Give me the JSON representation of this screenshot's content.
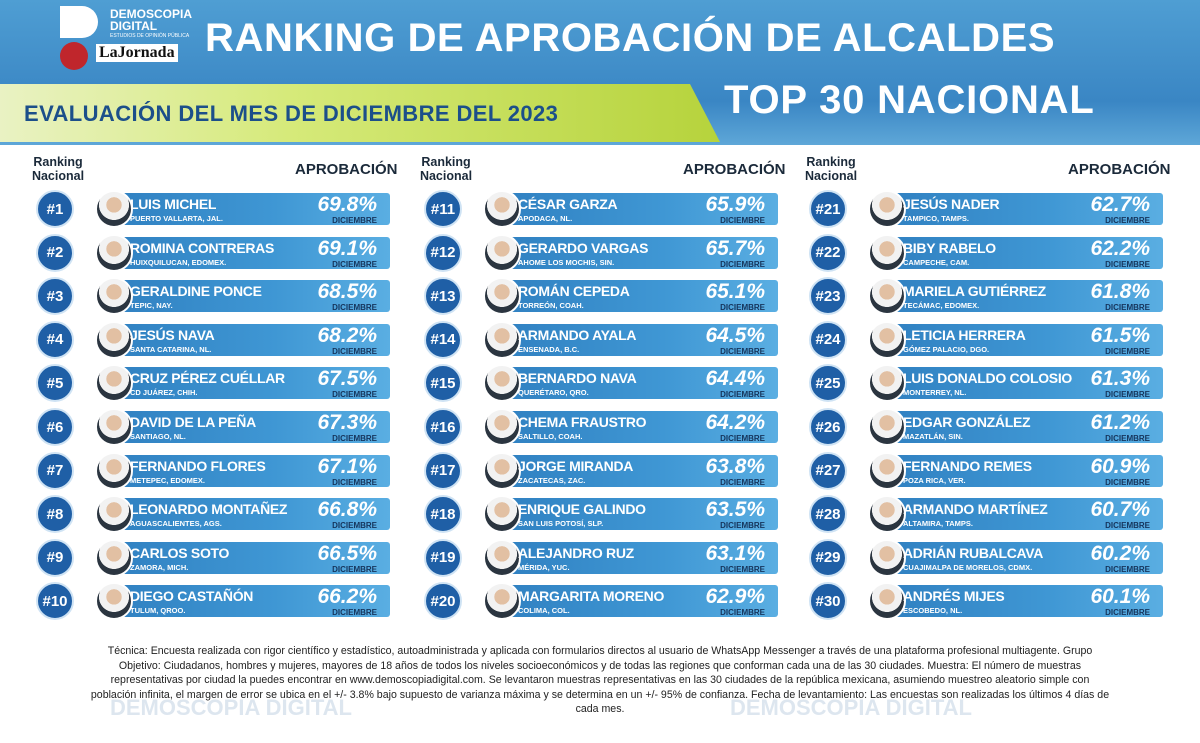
{
  "header": {
    "logo_name": "DEMOSCOPIA DIGITAL",
    "logo_tagline": "ESTUDIOS DE OPINIÓN PÚBLICA",
    "partner": "LaJornada",
    "title": "RANKING DE APROBACIÓN DE ALCALDES",
    "subtitle": "EVALUACIÓN DEL MES DE DICIEMBRE DEL 2023",
    "top": "TOP 30 NACIONAL"
  },
  "columns": {
    "rank_header": "Ranking Nacional",
    "approval_header": "APROBACIÓN",
    "month": "DICIEMBRE"
  },
  "rows": [
    [
      "#1",
      "LUIS MICHEL",
      "PUERTO VALLARTA, JAL.",
      "69.8%"
    ],
    [
      "#2",
      "ROMINA CONTRERAS",
      "HUIXQUILUCAN, EDOMEX.",
      "69.1%"
    ],
    [
      "#3",
      "GERALDINE PONCE",
      "TEPIC, NAY.",
      "68.5%"
    ],
    [
      "#4",
      "JESÚS NAVA",
      "SANTA CATARINA, NL.",
      "68.2%"
    ],
    [
      "#5",
      "CRUZ PÉREZ CUÉLLAR",
      "CD JUÁREZ, CHIH.",
      "67.5%"
    ],
    [
      "#6",
      "DAVID DE LA PEÑA",
      "SANTIAGO, NL.",
      "67.3%"
    ],
    [
      "#7",
      "FERNANDO FLORES",
      "METEPEC, EDOMEX.",
      "67.1%"
    ],
    [
      "#8",
      "LEONARDO MONTAÑEZ",
      "AGUASCALIENTES, AGS.",
      "66.8%"
    ],
    [
      "#9",
      "CARLOS SOTO",
      "ZAMORA, MICH.",
      "66.5%"
    ],
    [
      "#10",
      "DIEGO CASTAÑÓN",
      "TULUM, QROO.",
      "66.2%"
    ],
    [
      "#11",
      "CÉSAR GARZA",
      "APODACA, NL.",
      "65.9%"
    ],
    [
      "#12",
      "GERARDO VARGAS",
      "AHOME LOS MOCHIS, SIN.",
      "65.7%"
    ],
    [
      "#13",
      "ROMÁN CEPEDA",
      "TORREÓN, COAH.",
      "65.1%"
    ],
    [
      "#14",
      "ARMANDO AYALA",
      "ENSENADA, B.C.",
      "64.5%"
    ],
    [
      "#15",
      "BERNARDO NAVA",
      "QUERÉTARO, QRO.",
      "64.4%"
    ],
    [
      "#16",
      "CHEMA FRAUSTRO",
      "SALTILLO, COAH.",
      "64.2%"
    ],
    [
      "#17",
      "JORGE MIRANDA",
      "ZACATECAS, ZAC.",
      "63.8%"
    ],
    [
      "#18",
      "ENRIQUE GALINDO",
      "SAN LUIS POTOSÍ, SLP.",
      "63.5%"
    ],
    [
      "#19",
      "ALEJANDRO RUZ",
      "MÉRIDA, YUC.",
      "63.1%"
    ],
    [
      "#20",
      "MARGARITA MORENO",
      "COLIMA, COL.",
      "62.9%"
    ],
    [
      "#21",
      "JESÚS NADER",
      "TAMPICO, TAMPS.",
      "62.7%"
    ],
    [
      "#22",
      "BIBY RABELO",
      "CAMPECHE, CAM.",
      "62.2%"
    ],
    [
      "#23",
      "MARIELA GUTIÉRREZ",
      "TECÁMAC, EDOMEX.",
      "61.8%"
    ],
    [
      "#24",
      "LETICIA HERRERA",
      "GÓMEZ PALACIO, DGO.",
      "61.5%"
    ],
    [
      "#25",
      "LUIS DONALDO COLOSIO",
      "MONTERREY, NL.",
      "61.3%"
    ],
    [
      "#26",
      "EDGAR GONZÁLEZ",
      "MAZATLÁN, SIN.",
      "61.2%"
    ],
    [
      "#27",
      "FERNANDO REMES",
      "POZA RICA, VER.",
      "60.9%"
    ],
    [
      "#28",
      "ARMANDO MARTÍNEZ",
      "ALTAMIRA, TAMPS.",
      "60.7%"
    ],
    [
      "#29",
      "ADRIÁN RUBALCAVA",
      "CUAJIMALPA DE MORELOS, CDMX.",
      "60.2%"
    ],
    [
      "#30",
      "ANDRÉS MIJES",
      "ESCOBEDO, NL.",
      "60.1%"
    ]
  ],
  "footer": "Técnica: Encuesta realizada con rigor científico y estadístico, autoadministrada y aplicada con formularios directos al usuario de WhatsApp Messenger a través de una plataforma profesional multiagente. Grupo Objetivo: Ciudadanos, hombres y mujeres, mayores de 18 años de todos los niveles socioeconómicos y de todas las regiones que conforman cada una de las 30 ciudades. Muestra: El número de muestras representativas por ciudad la puedes encontrar en www.demoscopiadigital.com. Se levantaron muestras representativas en las 30 ciudades de la república mexicana, asumiendo muestreo aleatorio simple con población infinita, el margen de error se ubica en el +/- 3.8% bajo supuesto de varianza máxima y se determina en un +/- 95% de confianza. Fecha de levantamiento: Las encuestas son realizadas los últimos 4 días de cada mes."
}
